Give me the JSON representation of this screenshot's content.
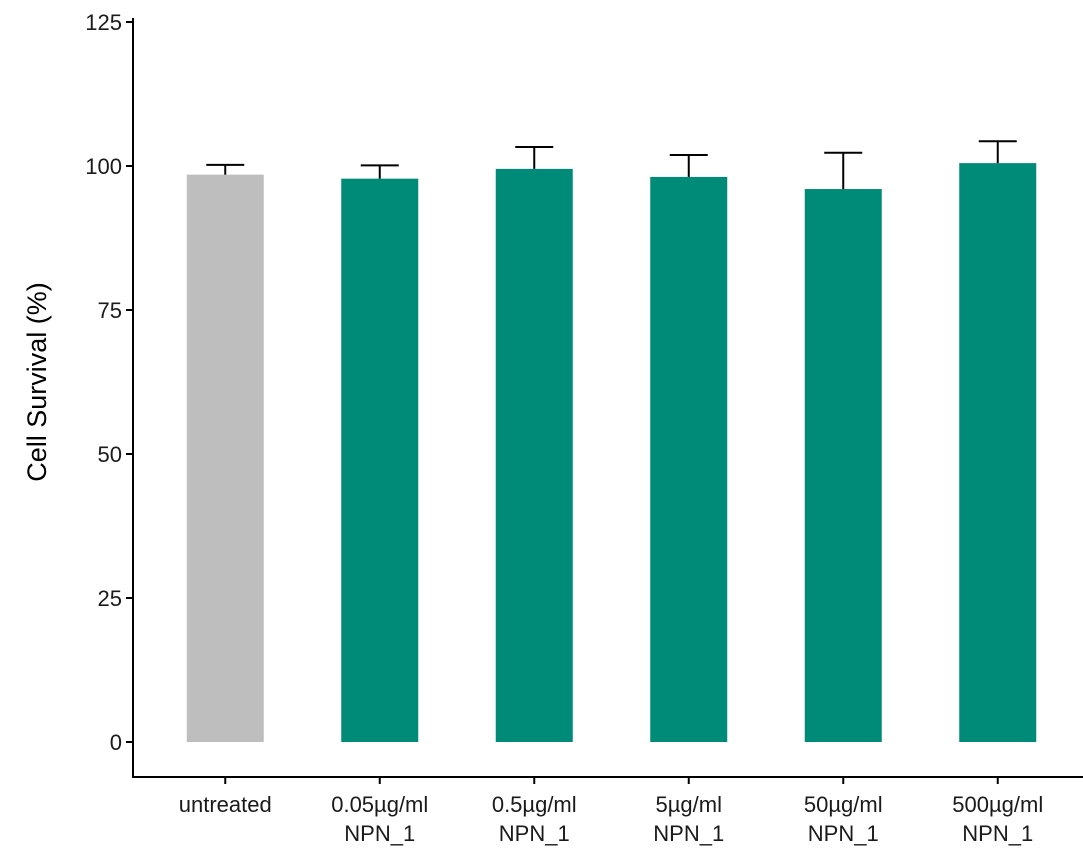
{
  "chart_data": {
    "type": "bar",
    "title": "",
    "xlabel": "",
    "ylabel": "Cell Survival (%)",
    "ylim": [
      0,
      125
    ],
    "yticks": [
      0,
      25,
      50,
      75,
      100,
      125
    ],
    "grid": false,
    "legend": "none",
    "categories": [
      [
        "untreated"
      ],
      [
        "0.05µg/ml",
        "NPN_1"
      ],
      [
        "0.5µg/ml",
        "NPN_1"
      ],
      [
        "5µg/ml",
        "NPN_1"
      ],
      [
        "50µg/ml",
        "NPN_1"
      ],
      [
        "500µg/ml",
        "NPN_1"
      ]
    ],
    "values": [
      98.5,
      97.8,
      99.5,
      98.1,
      96.0,
      100.5
    ],
    "errors": [
      1.7,
      2.3,
      3.8,
      3.8,
      6.3,
      3.8
    ],
    "colors": [
      "#bebebe",
      "#008a78",
      "#008a78",
      "#008a78",
      "#008a78",
      "#008a78"
    ]
  }
}
